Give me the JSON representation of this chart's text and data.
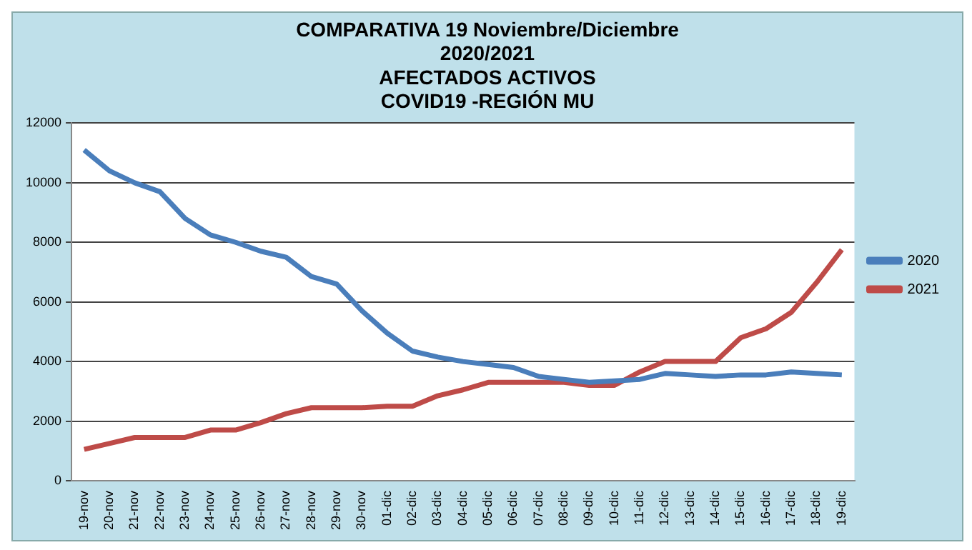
{
  "chart_data": {
    "type": "line",
    "title": [
      "COMPARATIVA 19 Noviembre/Diciembre",
      "2020/2021",
      "AFECTADOS ACTIVOS",
      "COVID19 -REGIÓN MU"
    ],
    "categories": [
      "19-nov",
      "20-nov",
      "21-nov",
      "22-nov",
      "23-nov",
      "24-nov",
      "25-nov",
      "26-nov",
      "27-nov",
      "28-nov",
      "29-nov",
      "30-nov",
      "01-dic",
      "02-dic",
      "03-dic",
      "04-dic",
      "05-dic",
      "06-dic",
      "07-dic",
      "08-dic",
      "09-dic",
      "10-dic",
      "11-dic",
      "12-dic",
      "13-dic",
      "14-dic",
      "15-dic",
      "16-dic",
      "17-dic",
      "18-dic",
      "19-dic"
    ],
    "series": [
      {
        "name": "2020",
        "color": "#4a7ebb",
        "values": [
          11100,
          10400,
          10000,
          9700,
          8800,
          8250,
          8000,
          7700,
          7500,
          6850,
          6600,
          5700,
          4950,
          4350,
          4150,
          4000,
          3900,
          3800,
          3500,
          3400,
          3300,
          3350,
          3400,
          3600,
          3550,
          3500,
          3550,
          3550,
          3650,
          3600,
          3550
        ]
      },
      {
        "name": "2021",
        "color": "#be4b48",
        "values": [
          1050,
          1250,
          1450,
          1450,
          1450,
          1700,
          1700,
          1950,
          2250,
          2450,
          2450,
          2450,
          2500,
          2500,
          2850,
          3050,
          3300,
          3300,
          3300,
          3300,
          3200,
          3200,
          3650,
          4000,
          4000,
          4000,
          4800,
          5100,
          5650,
          6650,
          7750
        ]
      }
    ],
    "ylim": [
      0,
      12000
    ],
    "yticks": [
      0,
      2000,
      4000,
      6000,
      8000,
      10000,
      12000
    ],
    "grid": "y",
    "legend": "right",
    "marker": "none",
    "line_style": "solid"
  }
}
